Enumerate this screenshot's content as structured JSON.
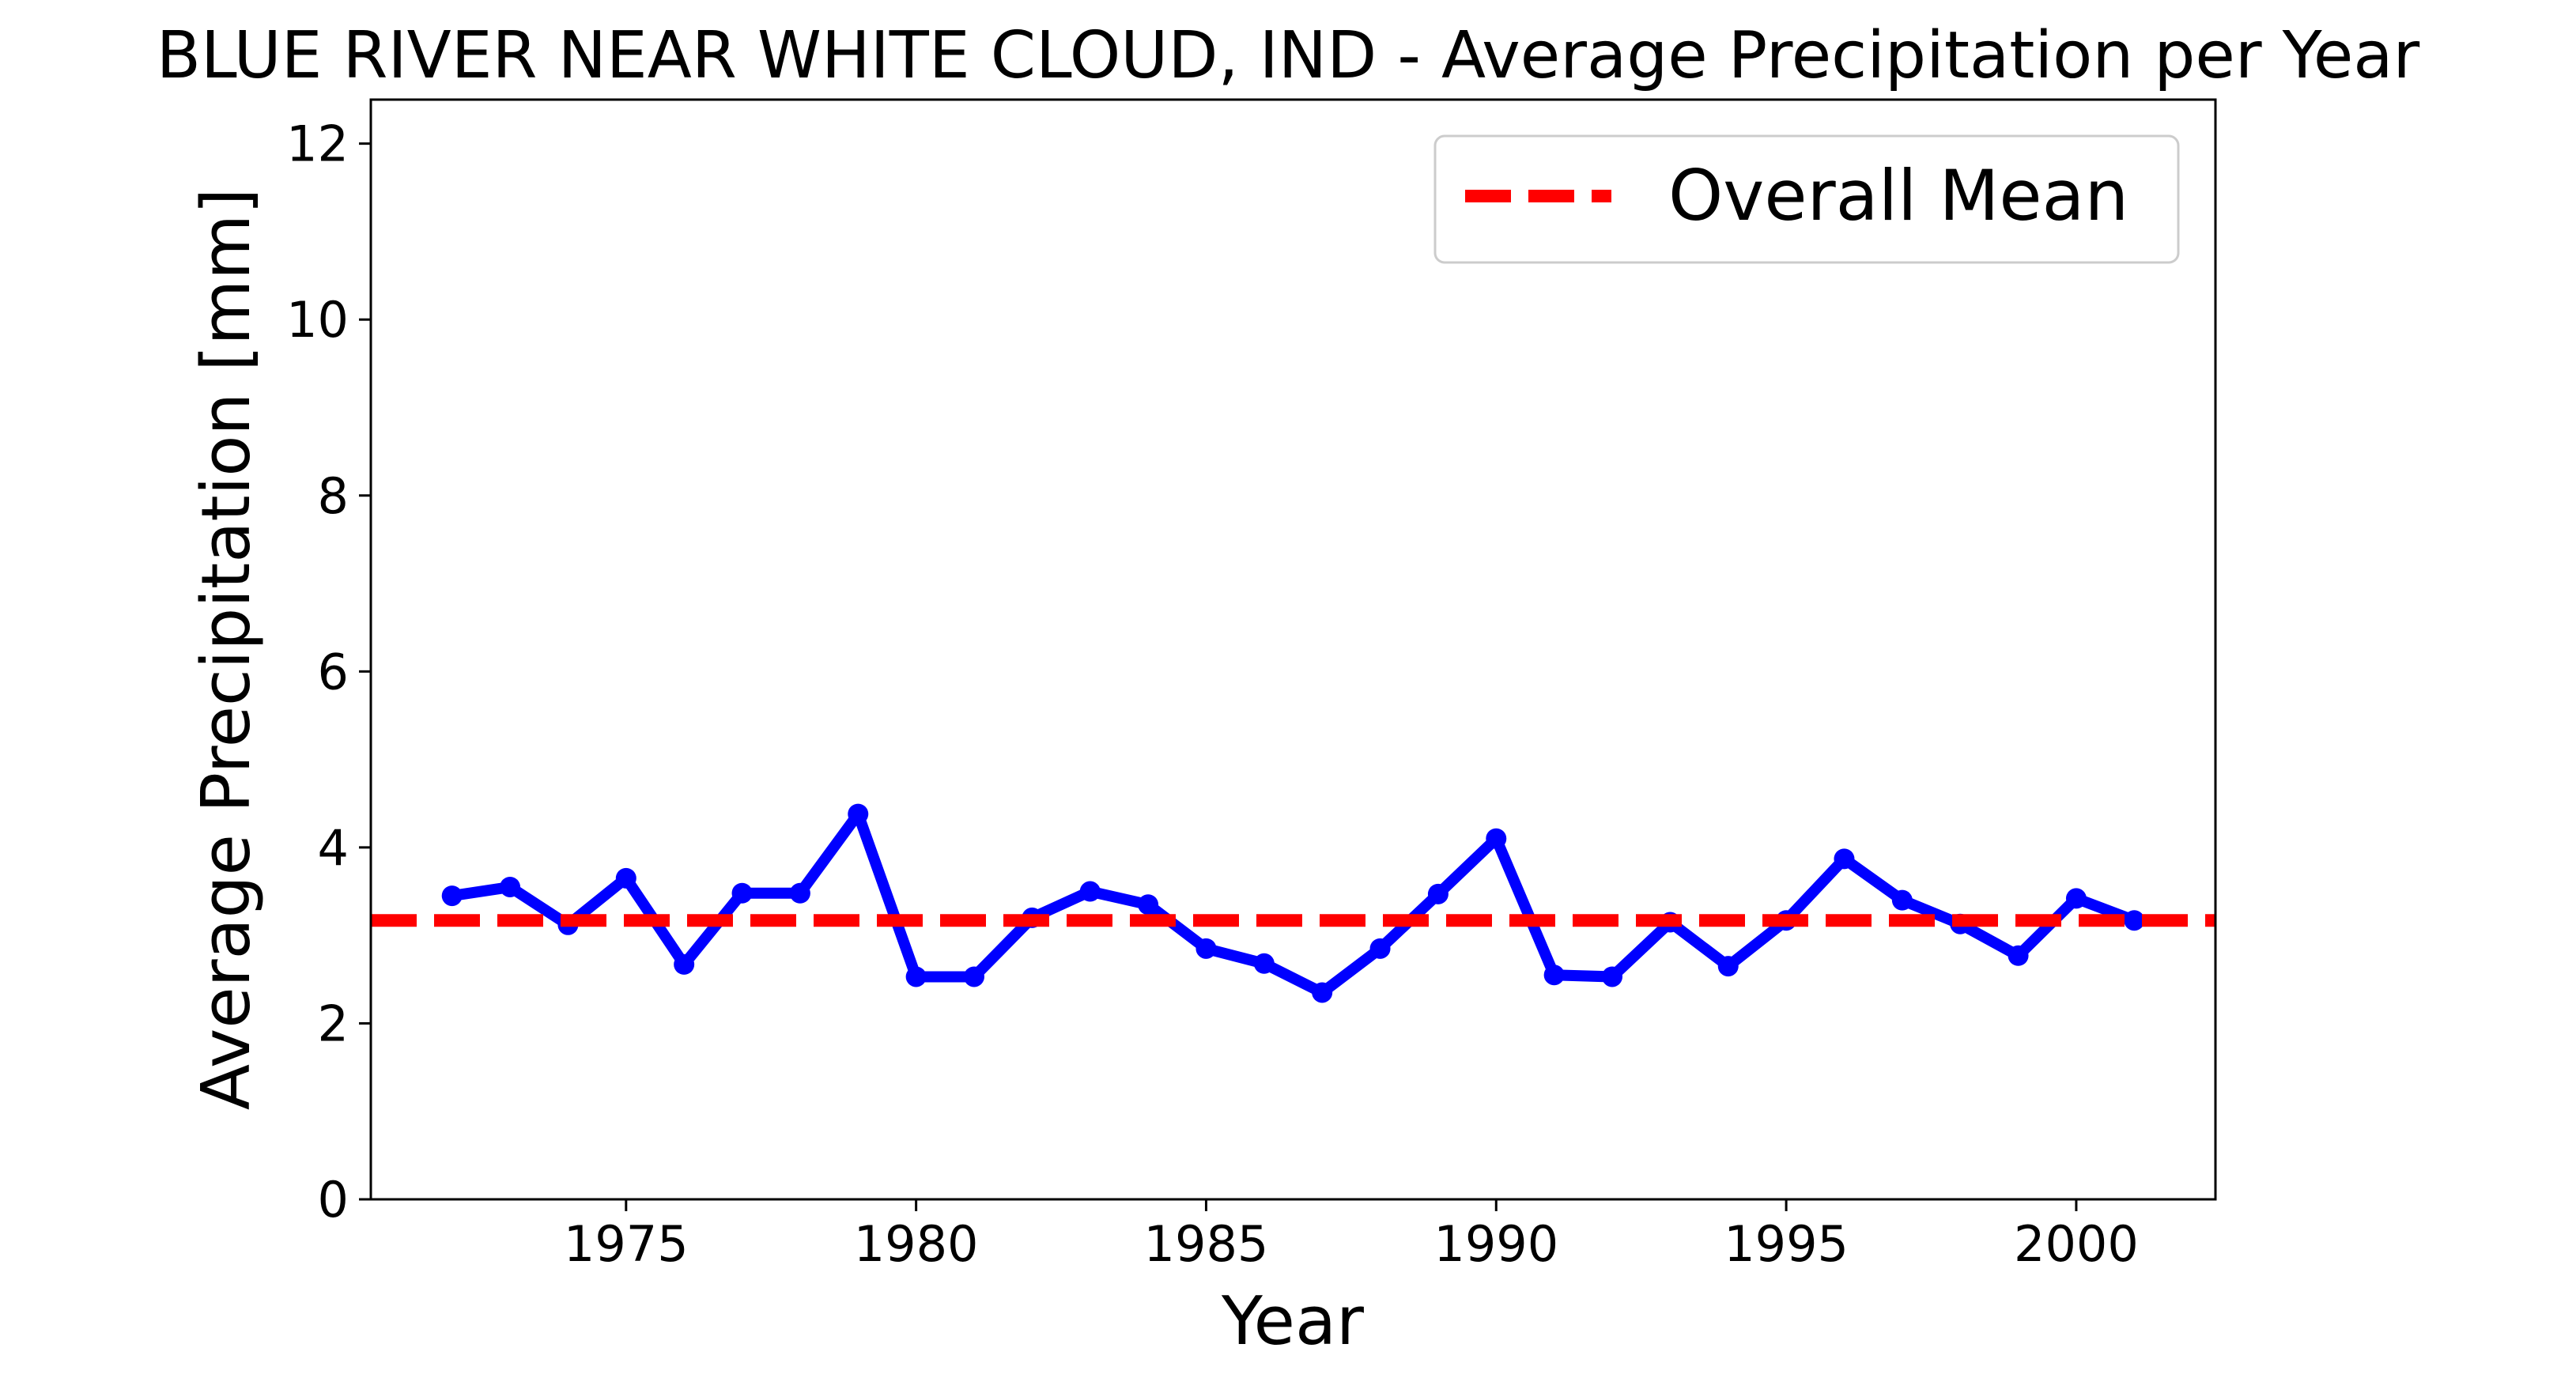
{
  "chart_data": {
    "type": "line",
    "title": "BLUE RIVER NEAR WHITE CLOUD, IND - Average Precipitation per Year",
    "xlabel": "Year",
    "ylabel": "Average Precipitation [mm]",
    "xlim": [
      1970.6,
      2002.4
    ],
    "ylim": [
      0,
      12.5
    ],
    "xticks": [
      1975,
      1980,
      1985,
      1990,
      1995,
      2000
    ],
    "yticks": [
      0,
      2,
      4,
      6,
      8,
      10,
      12
    ],
    "grid": false,
    "legend_position": "top-right",
    "series": [
      {
        "color": "#0000ff",
        "marker": "circle",
        "x": [
          1972,
          1973,
          1974,
          1975,
          1976,
          1977,
          1978,
          1979,
          1980,
          1981,
          1982,
          1983,
          1984,
          1985,
          1986,
          1987,
          1988,
          1989,
          1990,
          1991,
          1992,
          1993,
          1994,
          1995,
          1996,
          1997,
          1998,
          1999,
          2000,
          2001
        ],
        "y": [
          3.45,
          3.55,
          3.12,
          3.65,
          2.67,
          3.48,
          3.48,
          4.38,
          2.53,
          2.53,
          3.2,
          3.5,
          3.35,
          2.85,
          2.68,
          2.35,
          2.85,
          3.47,
          4.1,
          2.55,
          2.53,
          3.15,
          2.65,
          3.17,
          3.87,
          3.4,
          3.13,
          2.77,
          3.42,
          3.17
        ]
      }
    ],
    "reference_lines": [
      {
        "name": "Overall Mean",
        "y": 3.17,
        "color": "#ff0000",
        "style": "dashed"
      }
    ]
  }
}
